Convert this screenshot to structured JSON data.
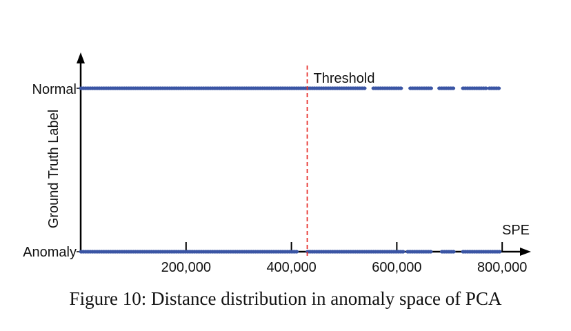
{
  "chart_data": {
    "type": "scatter",
    "xlabel": "SPE",
    "ylabel": "Ground Truth Label",
    "xlim": [
      0,
      800000
    ],
    "x_ticks": [
      200000,
      400000,
      600000,
      800000
    ],
    "x_tick_labels": [
      "200,000",
      "400,000",
      "600,000",
      "800,000"
    ],
    "categories": [
      "Anomaly",
      "Normal"
    ],
    "threshold": {
      "label": "Threshold",
      "x": 430000,
      "color": "#e8332f"
    },
    "point_color": "#3a55a4",
    "series": [
      {
        "name": "Normal",
        "segments": [
          [
            0,
            430000
          ],
          [
            430000,
            540000
          ],
          [
            555000,
            610000
          ],
          [
            625000,
            665000
          ],
          [
            680000,
            710000
          ],
          [
            725000,
            770000
          ],
          [
            775000,
            795000
          ]
        ]
      },
      {
        "name": "Anomaly",
        "segments": [
          [
            0,
            410000
          ],
          [
            430000,
            615000
          ],
          [
            620000,
            665000
          ],
          [
            685000,
            710000
          ],
          [
            725000,
            795000
          ]
        ]
      }
    ]
  },
  "caption": "Figure 10: Distance distribution in anomaly space of PCA"
}
